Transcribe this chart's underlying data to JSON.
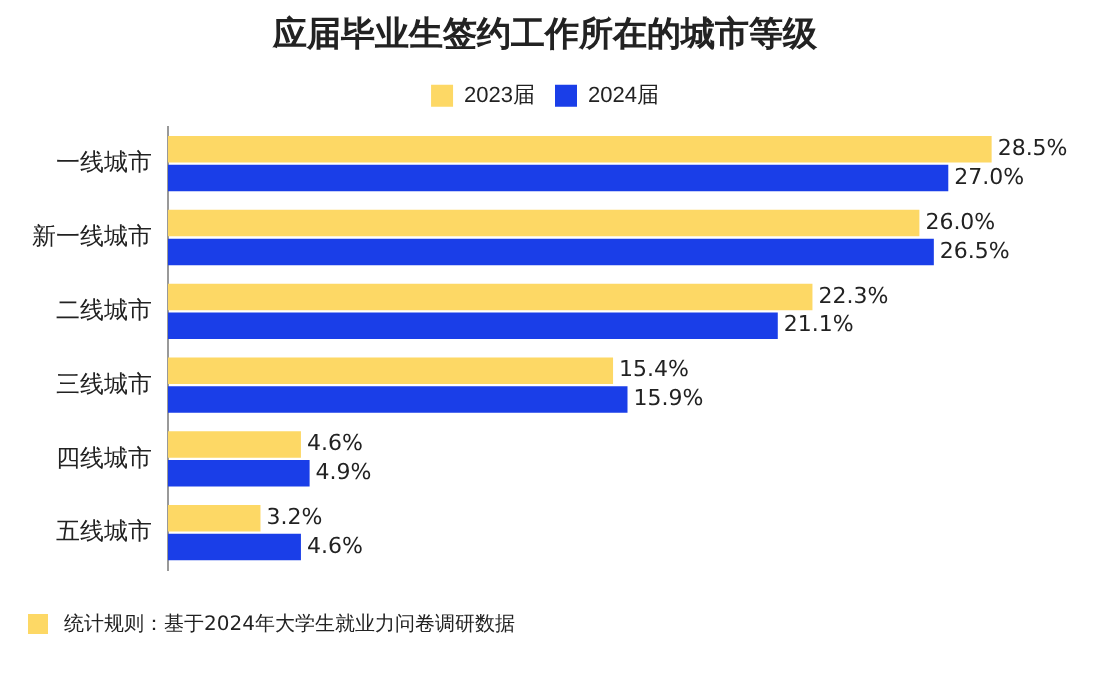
{
  "chart_data": {
    "type": "bar",
    "orientation": "horizontal",
    "title": "应届毕业生签约工作所在的城市等级",
    "categories": [
      "一线城市",
      "新一线城市",
      "二线城市",
      "三线城市",
      "四线城市",
      "五线城市"
    ],
    "series": [
      {
        "name": "2023届",
        "color": "#fdd865",
        "values": [
          28.5,
          26.0,
          22.3,
          15.4,
          4.6,
          3.2
        ],
        "value_labels": [
          "28.5%",
          "26.0%",
          "22.3%",
          "15.4%",
          "4.6%",
          "3.2%"
        ]
      },
      {
        "name": "2024届",
        "color": "#1a3ee8",
        "values": [
          27.0,
          26.5,
          21.1,
          15.9,
          4.9,
          4.6
        ],
        "value_labels": [
          "27.0%",
          "26.5%",
          "21.1%",
          "15.9%",
          "4.9%",
          "4.6%"
        ]
      }
    ],
    "legend": "top",
    "grid": false,
    "tick_labels": "y",
    "annotations": [
      "统计规则：基于2024年大学生就业力问卷调研数据"
    ]
  }
}
